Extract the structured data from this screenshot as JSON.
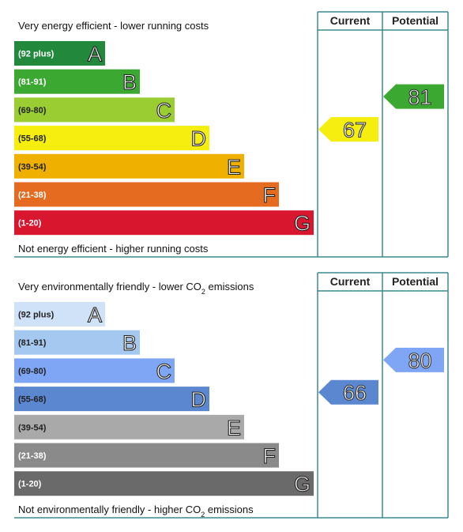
{
  "panels": [
    {
      "top_text": [
        "Very energy efficient - lower running costs"
      ],
      "bottom_text": [
        "Not energy efficient - higher running costs"
      ],
      "headers": [
        "Current",
        "Potential"
      ],
      "bands": [
        {
          "range": "(92 plus)",
          "letter": "A",
          "color": "#22883c",
          "label_color": "#ffffff"
        },
        {
          "range": "(81-91)",
          "letter": "B",
          "color": "#3ba832",
          "label_color": "#ffffff"
        },
        {
          "range": "(69-80)",
          "letter": "C",
          "color": "#9acd31",
          "label_color": "#222222"
        },
        {
          "range": "(55-68)",
          "letter": "D",
          "color": "#f6ee0f",
          "label_color": "#222222"
        },
        {
          "range": "(39-54)",
          "letter": "E",
          "color": "#f0b000",
          "label_color": "#222222"
        },
        {
          "range": "(21-38)",
          "letter": "F",
          "color": "#e46b20",
          "label_color": "#ffffff"
        },
        {
          "range": "(1-20)",
          "letter": "G",
          "color": "#d8172f",
          "label_color": "#ffffff"
        }
      ],
      "current": 67,
      "potential": 81
    },
    {
      "top_text": [
        "Very environmentally friendly - lower CO",
        "2",
        " emissions"
      ],
      "bottom_text": [
        "Not environmentally friendly - higher CO",
        "2",
        " emissions"
      ],
      "headers": [
        "Current",
        "Potential"
      ],
      "bands": [
        {
          "range": "(92 plus)",
          "letter": "A",
          "color": "#cfe2f8",
          "label_color": "#222222"
        },
        {
          "range": "(81-91)",
          "letter": "B",
          "color": "#a5c8f0",
          "label_color": "#222222"
        },
        {
          "range": "(69-80)",
          "letter": "C",
          "color": "#7fa6f4",
          "label_color": "#222222"
        },
        {
          "range": "(55-68)",
          "letter": "D",
          "color": "#5b86d0",
          "label_color": "#222222"
        },
        {
          "range": "(39-54)",
          "letter": "E",
          "color": "#a9a9a9",
          "label_color": "#222222"
        },
        {
          "range": "(21-38)",
          "letter": "F",
          "color": "#8a8a8a",
          "label_color": "#ffffff"
        },
        {
          "range": "(1-20)",
          "letter": "G",
          "color": "#6a6a6a",
          "label_color": "#ffffff"
        }
      ],
      "current": 66,
      "potential": 80
    }
  ]
}
